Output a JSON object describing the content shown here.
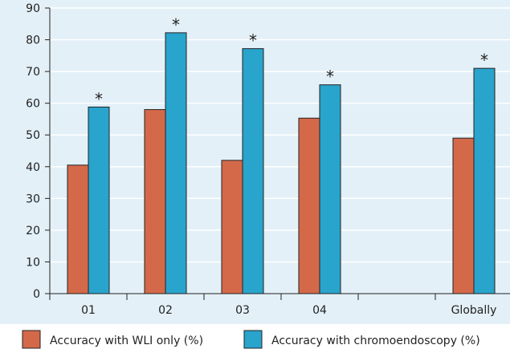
{
  "chart_data": {
    "type": "bar",
    "title": "",
    "xlabel": "",
    "ylabel": "",
    "ylim": [
      0,
      90
    ],
    "yticks": [
      0,
      10,
      20,
      30,
      40,
      50,
      60,
      70,
      80,
      90
    ],
    "grid": "horizontal",
    "legend_position": "bottom",
    "categories": [
      "01",
      "02",
      "03",
      "04",
      "",
      "Globally"
    ],
    "series": [
      {
        "name": "Accuracy with WLI only (%)",
        "color": "#d4694a",
        "values": [
          40.5,
          58,
          42,
          55.3,
          null,
          49
        ]
      },
      {
        "name": "Accuracy with chromoendoscopy (%)",
        "color": "#29a4cc",
        "values": [
          58.8,
          82.2,
          77.2,
          65.8,
          null,
          71
        ]
      }
    ],
    "annotations": [
      {
        "category": "01",
        "series": 1,
        "text": "*"
      },
      {
        "category": "02",
        "series": 1,
        "text": "*"
      },
      {
        "category": "03",
        "series": 1,
        "text": "*"
      },
      {
        "category": "04",
        "series": 1,
        "text": "*"
      },
      {
        "category": "Globally",
        "series": 1,
        "text": "*"
      }
    ],
    "background_color": "#e3f0f8"
  }
}
